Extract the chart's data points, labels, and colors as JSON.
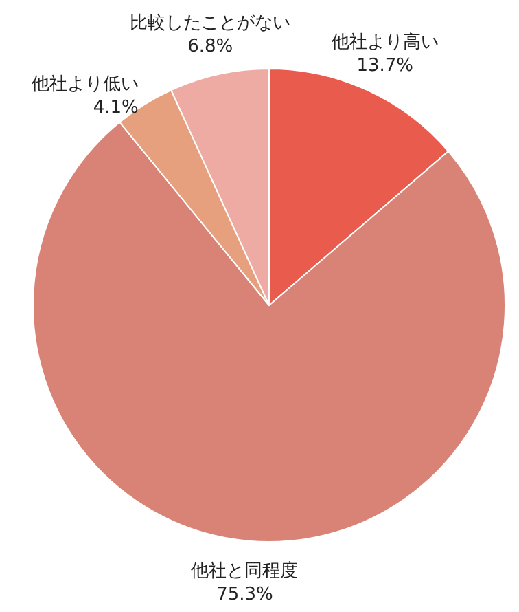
{
  "chart_data": {
    "type": "pie",
    "categories": [
      "他社より高い",
      "他社と同程度",
      "他社より低い",
      "比較したことがない"
    ],
    "values": [
      13.7,
      75.3,
      4.1,
      6.8
    ],
    "value_labels": [
      "13.7%",
      "75.3%",
      "4.1%",
      "6.8%"
    ],
    "colors": [
      "#e85b4d",
      "#d98276",
      "#e6a07e",
      "#eeaba4"
    ]
  }
}
